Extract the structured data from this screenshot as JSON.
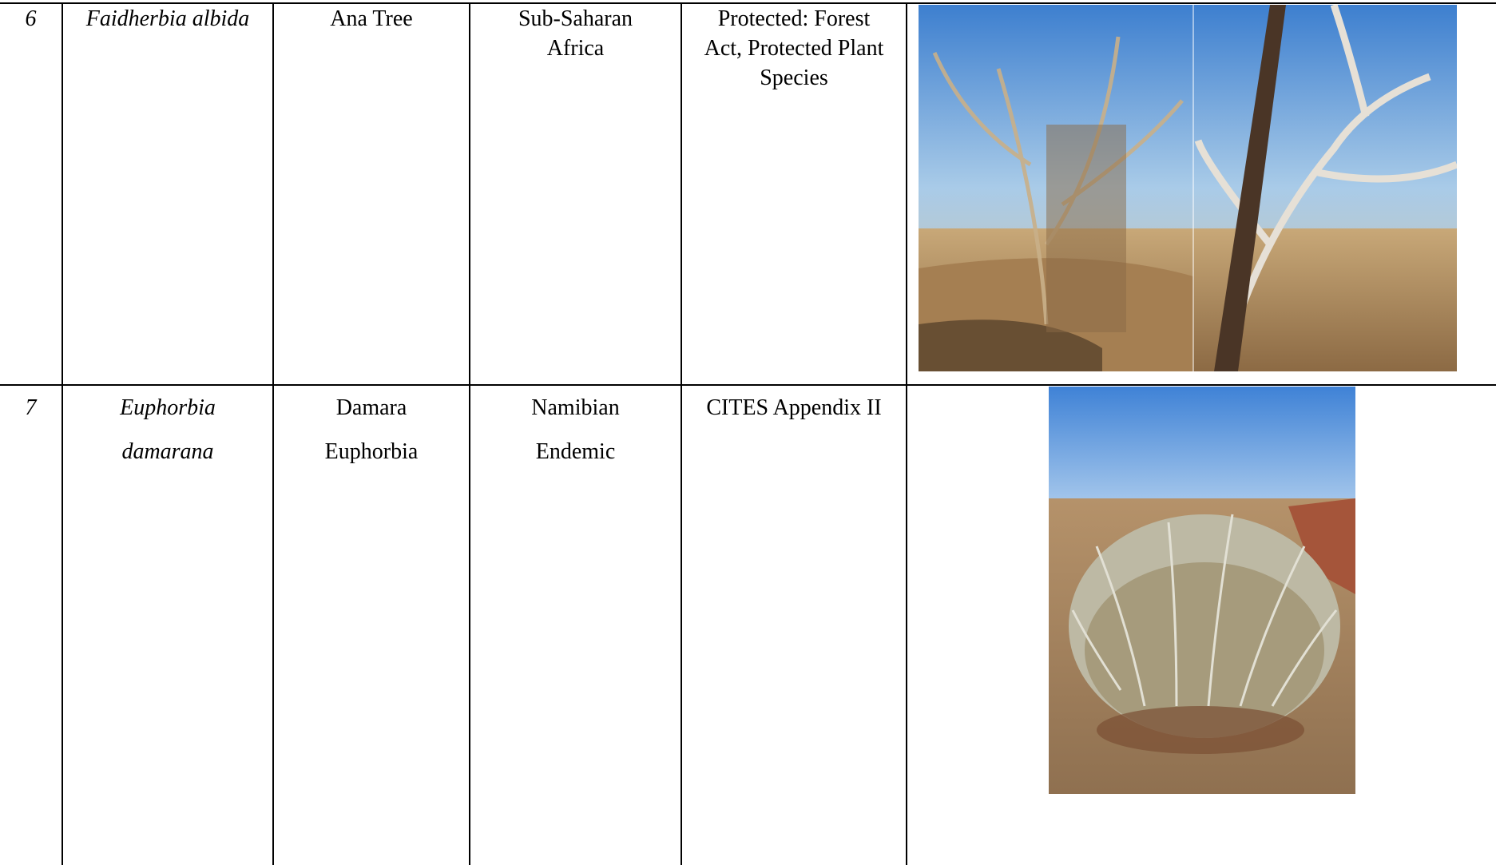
{
  "table": {
    "rows": [
      [
        "6",
        "Faidherbia albida",
        "Ana Tree",
        "Sub-Saharan Africa",
        "Protected: Forest Act, Protected Plant Species"
      ],
      [
        "7",
        "Euphorbia damarana",
        "Damara Euphorbia",
        "Namibian Endemic",
        "CITES Appendix II"
      ]
    ]
  }
}
